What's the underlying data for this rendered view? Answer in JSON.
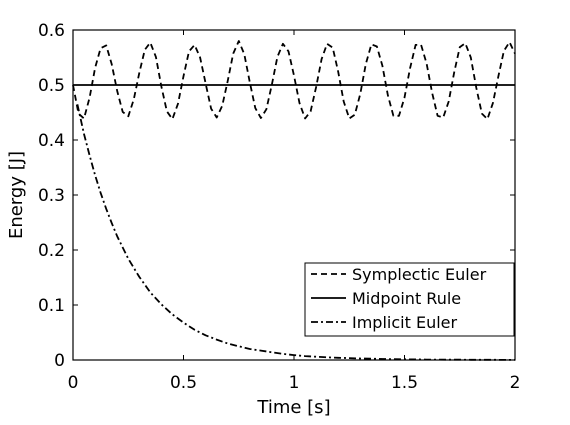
{
  "chart_data": {
    "type": "line",
    "xlabel": "Time [s]",
    "ylabel": "Energy [J]",
    "xlim": [
      0,
      2
    ],
    "ylim": [
      0,
      0.6
    ],
    "xticks": [
      "0",
      "0.5",
      "1",
      "1.5",
      "2"
    ],
    "yticks": [
      "0",
      "0.1",
      "0.2",
      "0.3",
      "0.4",
      "0.5",
      "0.6"
    ],
    "grid": false,
    "legend_position": "bottom-right",
    "series": [
      {
        "name": "Symplectic Euler",
        "style": "dashed",
        "x": [
          0.0,
          0.025,
          0.05,
          0.075,
          0.1,
          0.125,
          0.15,
          0.175,
          0.2,
          0.225,
          0.25,
          0.275,
          0.3,
          0.325,
          0.35,
          0.375,
          0.4,
          0.425,
          0.45,
          0.475,
          0.5,
          0.525,
          0.55,
          0.575,
          0.6,
          0.625,
          0.65,
          0.675,
          0.7,
          0.725,
          0.75,
          0.775,
          0.8,
          0.825,
          0.85,
          0.875,
          0.9,
          0.925,
          0.95,
          0.975,
          1.0,
          1.025,
          1.05,
          1.075,
          1.1,
          1.125,
          1.15,
          1.175,
          1.2,
          1.225,
          1.25,
          1.275,
          1.3,
          1.325,
          1.35,
          1.375,
          1.4,
          1.425,
          1.45,
          1.475,
          1.5,
          1.525,
          1.55,
          1.575,
          1.6,
          1.625,
          1.65,
          1.675,
          1.7,
          1.725,
          1.75,
          1.775,
          1.8,
          1.825,
          1.85,
          1.875,
          1.9,
          1.925,
          1.95,
          1.975,
          2.0
        ],
        "values": [
          0.5,
          0.448,
          0.439,
          0.477,
          0.531,
          0.567,
          0.572,
          0.538,
          0.489,
          0.451,
          0.443,
          0.474,
          0.522,
          0.564,
          0.577,
          0.551,
          0.497,
          0.452,
          0.438,
          0.466,
          0.516,
          0.561,
          0.573,
          0.55,
          0.503,
          0.457,
          0.441,
          0.462,
          0.507,
          0.557,
          0.58,
          0.556,
          0.505,
          0.458,
          0.44,
          0.456,
          0.501,
          0.551,
          0.575,
          0.561,
          0.517,
          0.467,
          0.439,
          0.452,
          0.496,
          0.547,
          0.575,
          0.568,
          0.524,
          0.47,
          0.439,
          0.446,
          0.484,
          0.538,
          0.574,
          0.57,
          0.535,
          0.481,
          0.444,
          0.444,
          0.477,
          0.53,
          0.573,
          0.573,
          0.539,
          0.486,
          0.444,
          0.441,
          0.47,
          0.523,
          0.569,
          0.576,
          0.55,
          0.495,
          0.448,
          0.438,
          0.467,
          0.516,
          0.562,
          0.578,
          0.557
        ]
      },
      {
        "name": "Midpoint Rule",
        "style": "solid",
        "x": [
          0,
          2
        ],
        "values": [
          0.5,
          0.5
        ]
      },
      {
        "name": "Implicit Euler",
        "style": "dashdot",
        "x": [
          0.02,
          0.05,
          0.075,
          0.1,
          0.125,
          0.15,
          0.175,
          0.2,
          0.25,
          0.3,
          0.35,
          0.4,
          0.45,
          0.5,
          0.55,
          0.6,
          0.65,
          0.7,
          0.75,
          0.8,
          0.85,
          0.9,
          0.95,
          1.0,
          1.05,
          1.1,
          1.15,
          1.2,
          1.25,
          1.3,
          1.35,
          1.4,
          1.45,
          1.5,
          1.55,
          1.6,
          1.65,
          1.7,
          1.75,
          1.8,
          1.85,
          1.9,
          1.95,
          2.0
        ],
        "values": [
          0.465,
          0.411,
          0.372,
          0.336,
          0.304,
          0.275,
          0.249,
          0.225,
          0.184,
          0.151,
          0.123,
          0.101,
          0.083,
          0.068,
          0.055,
          0.045,
          0.037,
          0.03,
          0.025,
          0.02,
          0.017,
          0.014,
          0.011,
          0.009,
          0.007,
          0.006,
          0.005,
          0.004,
          0.0034,
          0.0028,
          0.0023,
          0.0019,
          0.0015,
          0.0012,
          0.001,
          0.0008,
          0.0007,
          0.0006,
          0.0005,
          0.0004,
          0.0003,
          0.0003,
          0.0002,
          0.0002
        ]
      }
    ]
  }
}
